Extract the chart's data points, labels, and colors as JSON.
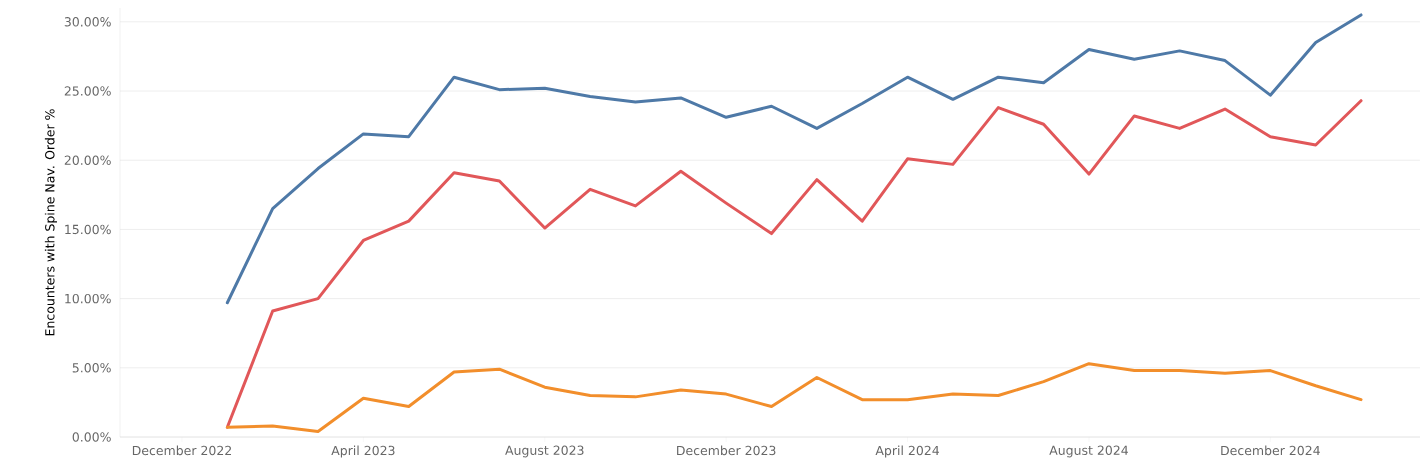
{
  "chart_data": {
    "type": "line",
    "ylabel": "Encounters with Spine Nav. Order %",
    "x": [
      "2023-01",
      "2023-02",
      "2023-03",
      "2023-04",
      "2023-05",
      "2023-06",
      "2023-07",
      "2023-08",
      "2023-09",
      "2023-10",
      "2023-11",
      "2023-12",
      "2024-01",
      "2024-02",
      "2024-03",
      "2024-04",
      "2024-05",
      "2024-06",
      "2024-07",
      "2024-08",
      "2024-09",
      "2024-10",
      "2024-11",
      "2024-12",
      "2025-01",
      "2025-02"
    ],
    "series": [
      {
        "color": "#4e79a7",
        "values": [
          9.7,
          16.5,
          19.4,
          21.9,
          21.7,
          26.0,
          25.1,
          25.2,
          24.6,
          24.2,
          24.5,
          23.1,
          23.9,
          22.3,
          24.1,
          26.0,
          24.4,
          26.0,
          25.6,
          28.0,
          27.3,
          27.9,
          27.2,
          24.7,
          28.5,
          30.5
        ]
      },
      {
        "color": "#e15759",
        "values": [
          0.7,
          9.1,
          10.0,
          14.2,
          15.6,
          19.1,
          18.5,
          15.1,
          17.9,
          16.7,
          19.2,
          16.9,
          14.7,
          18.6,
          15.6,
          20.1,
          19.7,
          23.8,
          22.6,
          19.0,
          23.2,
          22.3,
          23.7,
          21.7,
          21.1,
          24.3
        ]
      },
      {
        "color": "#f28e2b",
        "values": [
          0.7,
          0.8,
          0.4,
          2.8,
          2.2,
          4.7,
          4.9,
          3.6,
          3.0,
          2.9,
          3.4,
          3.1,
          2.2,
          4.3,
          2.7,
          2.7,
          3.1,
          3.0,
          4.0,
          5.3,
          4.8,
          4.8,
          4.6,
          4.8,
          3.7,
          2.7
        ]
      }
    ],
    "xlim": [
      "2022-10-20",
      "2025-03-10"
    ],
    "xticks": [
      {
        "value": "2022-12",
        "label": "December 2022"
      },
      {
        "value": "2023-04",
        "label": "April 2023"
      },
      {
        "value": "2023-08",
        "label": "August 2023"
      },
      {
        "value": "2023-12",
        "label": "December 2023"
      },
      {
        "value": "2024-04",
        "label": "April 2024"
      },
      {
        "value": "2024-08",
        "label": "August 2024"
      },
      {
        "value": "2024-12",
        "label": "December 2024"
      }
    ],
    "ylim": [
      0,
      31
    ],
    "yticks": [
      {
        "value": 0,
        "label": "0.00%"
      },
      {
        "value": 5,
        "label": "5.00%"
      },
      {
        "value": 10,
        "label": "10.00%"
      },
      {
        "value": 15,
        "label": "15.00%"
      },
      {
        "value": 20,
        "label": "20.00%"
      },
      {
        "value": 25,
        "label": "25.00%"
      },
      {
        "value": 30,
        "label": "30.00%"
      }
    ],
    "grid": "y",
    "line_style": "solid"
  }
}
